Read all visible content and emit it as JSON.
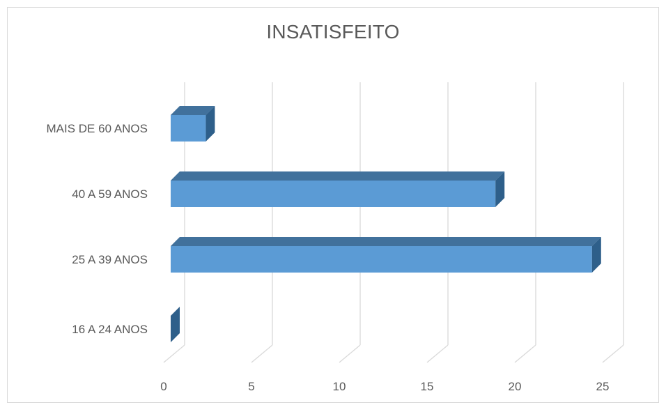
{
  "chart_data": {
    "type": "bar",
    "orientation": "horizontal",
    "style": "3d",
    "title": "INSATISFEITO",
    "categories": [
      "16 A 24 ANOS",
      "25 A 39 ANOS",
      "40 A 59 ANOS",
      "MAIS DE 60 ANOS"
    ],
    "series": [
      {
        "values": [
          0,
          24,
          18.5,
          2
        ]
      }
    ],
    "xlim": [
      0,
      25
    ],
    "xticks": [
      0,
      5,
      10,
      15,
      20,
      25
    ],
    "grid": true,
    "legend": "none",
    "colors": {
      "bar_front": "#5b9bd5",
      "bar_top": "#41719c",
      "bar_side": "#2e5f8a",
      "grid": "#d9d9d9",
      "text": "#595959"
    }
  }
}
